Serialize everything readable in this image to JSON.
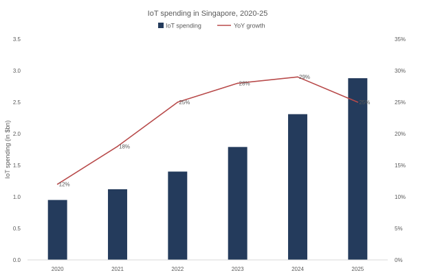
{
  "chart_data": {
    "type": "bar",
    "title": "IoT spending in Singapore, 2020-25",
    "categories": [
      "2020",
      "2021",
      "2022",
      "2023",
      "2024",
      "2025"
    ],
    "series": [
      {
        "name": "IoT spending",
        "type": "bar",
        "axis": "left",
        "values": [
          0.95,
          1.12,
          1.4,
          1.79,
          2.31,
          2.88
        ]
      },
      {
        "name": "YoY growth",
        "type": "line",
        "axis": "right",
        "values": [
          12,
          18,
          25,
          28,
          29,
          25
        ],
        "labels": [
          "12%",
          "18%",
          "25%",
          "28%",
          "29%",
          "25%"
        ]
      }
    ],
    "ylabel": "IoT spending (in $bn)",
    "ylim": [
      0,
      3.5
    ],
    "yticks": [
      "0.0",
      "0.5",
      "1.0",
      "1.5",
      "2.0",
      "2.5",
      "3.0",
      "3.5"
    ],
    "y2lim": [
      0,
      35
    ],
    "y2ticks": [
      "0%",
      "5%",
      "10%",
      "15%",
      "20%",
      "25%",
      "30%",
      "35%"
    ],
    "legend": "top-center",
    "grid": false,
    "colors": {
      "bar": "#243B5C",
      "line": "#B84A4A",
      "text": "#595959"
    }
  }
}
